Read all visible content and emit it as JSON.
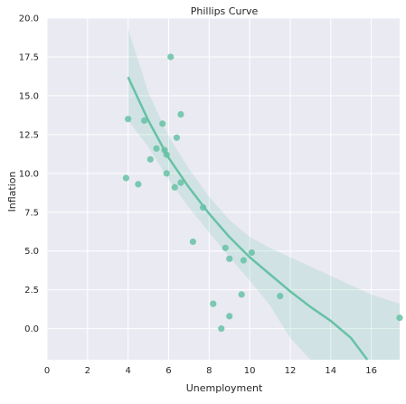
{
  "chart_data": {
    "type": "scatter",
    "title": "Phillips Curve",
    "xlabel": "Unemployment",
    "ylabel": "Inflation",
    "xlim": [
      0,
      17.4
    ],
    "ylim": [
      -2.0,
      20.0
    ],
    "xticks": [
      0,
      2,
      4,
      6,
      8,
      10,
      12,
      14,
      16
    ],
    "xtick_labels": [
      "0",
      "2",
      "4",
      "6",
      "8",
      "10",
      "12",
      "14",
      "16"
    ],
    "yticks": [
      0.0,
      2.5,
      5.0,
      7.5,
      10.0,
      12.5,
      15.0,
      17.5,
      20.0
    ],
    "ytick_labels": [
      "0.0",
      "2.5",
      "5.0",
      "7.5",
      "10.0",
      "12.5",
      "15.0",
      "17.5",
      "20.0"
    ],
    "grid": true,
    "colors": {
      "background": "#EAEAF2",
      "grid": "#FFFFFF",
      "points": "#66C2A5",
      "fit_line": "#66C2A5",
      "confidence_band": "#66C2A5"
    },
    "points": [
      {
        "x": 6.1,
        "y": 17.5
      },
      {
        "x": 6.6,
        "y": 13.8
      },
      {
        "x": 4.0,
        "y": 13.5
      },
      {
        "x": 4.8,
        "y": 13.4
      },
      {
        "x": 5.7,
        "y": 13.2
      },
      {
        "x": 6.4,
        "y": 12.3
      },
      {
        "x": 5.4,
        "y": 11.6
      },
      {
        "x": 5.8,
        "y": 11.5
      },
      {
        "x": 5.9,
        "y": 11.2
      },
      {
        "x": 5.1,
        "y": 10.9
      },
      {
        "x": 5.9,
        "y": 10.0
      },
      {
        "x": 3.9,
        "y": 9.7
      },
      {
        "x": 6.6,
        "y": 9.4
      },
      {
        "x": 4.5,
        "y": 9.3
      },
      {
        "x": 6.3,
        "y": 9.1
      },
      {
        "x": 7.7,
        "y": 7.8
      },
      {
        "x": 7.2,
        "y": 5.6
      },
      {
        "x": 8.8,
        "y": 5.2
      },
      {
        "x": 10.1,
        "y": 4.9
      },
      {
        "x": 9.0,
        "y": 4.5
      },
      {
        "x": 9.7,
        "y": 4.4
      },
      {
        "x": 9.6,
        "y": 2.2
      },
      {
        "x": 11.5,
        "y": 2.1
      },
      {
        "x": 8.2,
        "y": 1.6
      },
      {
        "x": 9.0,
        "y": 0.8
      },
      {
        "x": 17.4,
        "y": 0.7
      },
      {
        "x": 8.6,
        "y": 0.0
      }
    ],
    "fit_line": [
      {
        "x": 4.0,
        "y": 16.2
      },
      {
        "x": 5.0,
        "y": 13.4
      },
      {
        "x": 6.0,
        "y": 11.0
      },
      {
        "x": 7.0,
        "y": 9.1
      },
      {
        "x": 8.0,
        "y": 7.4
      },
      {
        "x": 9.0,
        "y": 5.9
      },
      {
        "x": 10.0,
        "y": 4.6
      },
      {
        "x": 11.0,
        "y": 3.5
      },
      {
        "x": 12.0,
        "y": 2.4
      },
      {
        "x": 13.0,
        "y": 1.4
      },
      {
        "x": 14.0,
        "y": 0.5
      },
      {
        "x": 15.0,
        "y": -0.6
      },
      {
        "x": 15.8,
        "y": -2.0
      }
    ],
    "confidence_band": [
      {
        "x": 4.0,
        "upper": 19.3,
        "lower": 13.4
      },
      {
        "x": 5.0,
        "upper": 15.2,
        "lower": 11.7
      },
      {
        "x": 6.0,
        "upper": 12.4,
        "lower": 9.6
      },
      {
        "x": 7.0,
        "upper": 10.3,
        "lower": 7.8
      },
      {
        "x": 8.0,
        "upper": 8.5,
        "lower": 6.2
      },
      {
        "x": 9.0,
        "upper": 7.0,
        "lower": 4.6
      },
      {
        "x": 10.0,
        "upper": 5.9,
        "lower": 3.1
      },
      {
        "x": 11.0,
        "upper": 5.2,
        "lower": 1.5
      },
      {
        "x": 12.0,
        "upper": 4.6,
        "lower": -0.6
      },
      {
        "x": 13.0,
        "upper": 4.0,
        "lower": -2.0
      },
      {
        "x": 14.0,
        "upper": 3.4,
        "lower": -2.0
      },
      {
        "x": 15.0,
        "upper": 2.8,
        "lower": -2.0
      },
      {
        "x": 16.0,
        "upper": 2.2,
        "lower": -2.0
      },
      {
        "x": 17.4,
        "upper": 1.6,
        "lower": -2.0
      }
    ]
  }
}
